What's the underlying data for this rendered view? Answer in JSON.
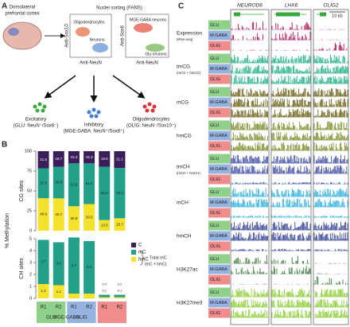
{
  "panel_a": {
    "label": "A",
    "brain_label": [
      "Dorsolateral",
      "prefrontal cortex"
    ],
    "sorting": "Nuclei sorting (FANS)",
    "plot1": {
      "ylabel": "Anti-Sox10",
      "xlabel": "Anti-NeuN",
      "clusters": [
        "Oligodendrocytes",
        "Neurons"
      ]
    },
    "plot2": {
      "ylabel": "Anti-Sox6",
      "xlabel": "Anti-NeuN",
      "clusters": [
        "MGE-GABA neurons",
        "Glu neurons"
      ]
    },
    "excitatory": [
      "Excitatory",
      "(GLU: NeuN⁺/Sox6⁻)"
    ],
    "inhibitory": [
      "Inhibitory",
      "(MGE-GABA: NeuN⁺/Sox6⁺)"
    ],
    "oligo": [
      "Oligodendrocytes",
      "(OLIG: NeuN⁻/Sox10⁺)"
    ]
  },
  "panel_b": {
    "label": "B",
    "ylabel": "% Methylation",
    "groups": [
      "GLU",
      "MGE-GABA",
      "OLIG"
    ],
    "legend_note": [
      "Total mC",
      "(mC + hmC)"
    ]
  },
  "chart_data": [
    {
      "type": "stacked-bar",
      "title": "CG sites",
      "ylim": [
        0,
        100
      ],
      "yticks": [
        0,
        25,
        50,
        75,
        100
      ],
      "series": [
        {
          "name": "C",
          "color": "#3a1e5a",
          "values": [
            21.5,
            19.7,
            15.3,
            15.3,
            19.6,
            21.1
          ]
        },
        {
          "name": "mC",
          "color": "#22a08a",
          "values": [
            37.6,
            39.6,
            53.9,
            51.2,
            66.9,
            63.2
          ]
        },
        {
          "name": "hmC",
          "color": "#f4e22c",
          "values": [
            40.9,
            40.7,
            30.8,
            33.5,
            13.5,
            15.7
          ]
        }
      ]
    },
    {
      "type": "stacked-bar",
      "title": "CH sites",
      "ylim": [
        0,
        5
      ],
      "yticks": [
        0,
        1,
        2,
        3,
        4,
        5
      ],
      "categories": [
        "R1",
        "R2",
        "R1",
        "R2",
        "R1",
        "R2"
      ],
      "series": [
        {
          "name": "mC",
          "color": "#22a08a",
          "values": [
            3.7,
            3.6,
            4.7,
            4.4,
            0.2,
            0.2
          ]
        },
        {
          "name": "hmC",
          "color": "#f4e22c",
          "values": [
            1.2,
            1.1,
            0.4,
            0.4,
            0.1,
            0.1
          ]
        }
      ]
    }
  ],
  "panel_c": {
    "label": "C",
    "genes": [
      "NEUROD6",
      "LHX6",
      "OLIG2"
    ],
    "scale": "10 kb",
    "rows": [
      "GLU",
      "M-GABA",
      "OLIG"
    ],
    "tracks": [
      {
        "name": "Expression",
        "sub": "(RNA-seq)",
        "color": "#b3175c"
      },
      {
        "name": "tmCG",
        "sub": "(mCG + hmCG)",
        "color": "#27b38a"
      },
      {
        "name": "mCG",
        "color": "#6e641c"
      },
      {
        "name": "hmCG",
        "color": "#7d8f2e"
      },
      {
        "name": "tmCH",
        "sub": "(mCH + hmCH)",
        "color": "#4653a6"
      },
      {
        "name": "mCH",
        "color": "#33b2dc"
      },
      {
        "name": "hmCH",
        "color": "#3a4896"
      },
      {
        "name": "H3K27ac",
        "color": "#3f7c3f"
      },
      {
        "name": "H3K27me3",
        "color": "#8fcf3c"
      }
    ]
  }
}
